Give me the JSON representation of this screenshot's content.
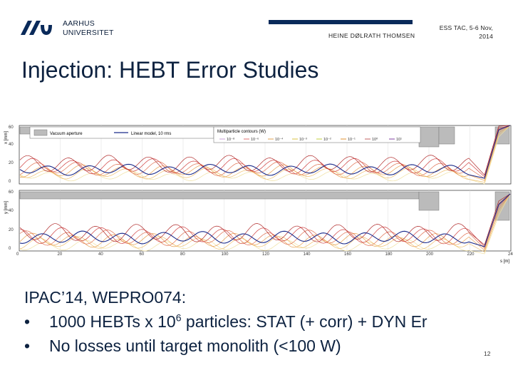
{
  "header": {
    "university_line1": "AARHUS",
    "university_line2": "UNIVERSITET",
    "author": "HEINE DØLRATH THOMSEN",
    "conference_line1": "ESS TAC, 5-6 Nov,",
    "conference_line2": "2014"
  },
  "title": "Injection: HEBT Error Studies",
  "figure": {
    "legend_vacuum": "Vacuum aperture",
    "legend_linear": "Linear model, 10 rms",
    "legend_multi": "Multiparticle contours (W)",
    "legend_levels": [
      "10⁻⁸",
      "10⁻⁶",
      "10⁻⁴",
      "10⁻³",
      "10⁻²",
      "10⁻¹",
      "10⁰",
      "10¹"
    ],
    "top_ylabel": "x [mm]",
    "bottom_ylabel": "y [mm]",
    "xlabel": "s [m]",
    "x_ticks": [
      "0",
      "20",
      "40",
      "60",
      "80",
      "100",
      "120",
      "140",
      "160",
      "180",
      "200",
      "220",
      "240"
    ],
    "top_y_ticks": [
      "60",
      "40",
      "20",
      "0"
    ],
    "bottom_y_ticks": [
      "60",
      "40",
      "20",
      "0"
    ]
  },
  "body": {
    "line1": "IPAC’14, WEPRO074:",
    "bullet1_pre": "1000 HEBTs x 10",
    "bullet1_sup": "6",
    "bullet1_post": " particles: STAT (+ corr) + DYN Er",
    "bullet2": "No losses until target monolith (<100 W)",
    "bullet_char": "•"
  },
  "page_number": "12",
  "colors": {
    "brand": "#0a2a5a",
    "title": "#0d2240"
  }
}
